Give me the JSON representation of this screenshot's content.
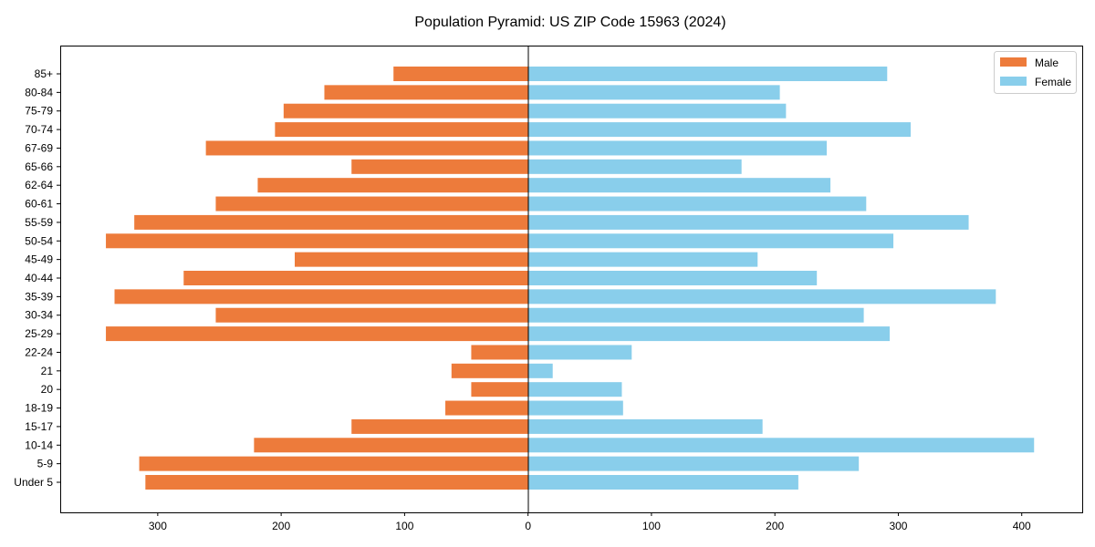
{
  "chart_data": {
    "type": "bar",
    "orientation": "horizontal",
    "title": "Population Pyramid: US ZIP Code 15963 (2024)",
    "xlabel": "",
    "ylabel": "",
    "xlim": [
      -379,
      449
    ],
    "xticks": [
      -300,
      -200,
      -100,
      0,
      100,
      200,
      300,
      400
    ],
    "xtick_labels": [
      "300",
      "200",
      "100",
      "0",
      "100",
      "200",
      "300",
      "400"
    ],
    "grid": false,
    "legend_position": "top-right",
    "categories": [
      "Under 5",
      "5-9",
      "10-14",
      "15-17",
      "18-19",
      "20",
      "21",
      "22-24",
      "25-29",
      "30-34",
      "35-39",
      "40-44",
      "45-49",
      "50-54",
      "55-59",
      "60-61",
      "62-64",
      "65-66",
      "67-69",
      "70-74",
      "75-79",
      "80-84",
      "85+"
    ],
    "series": [
      {
        "name": "Male",
        "color": "#ed7b3b",
        "values": [
          310,
          315,
          222,
          143,
          67,
          46,
          62,
          46,
          342,
          253,
          335,
          279,
          189,
          342,
          319,
          253,
          219,
          143,
          261,
          205,
          198,
          165,
          109
        ]
      },
      {
        "name": "Female",
        "color": "#89ceeb",
        "values": [
          219,
          268,
          410,
          190,
          77,
          76,
          20,
          84,
          293,
          272,
          379,
          234,
          186,
          296,
          357,
          274,
          245,
          173,
          242,
          310,
          209,
          204,
          291
        ]
      }
    ]
  }
}
